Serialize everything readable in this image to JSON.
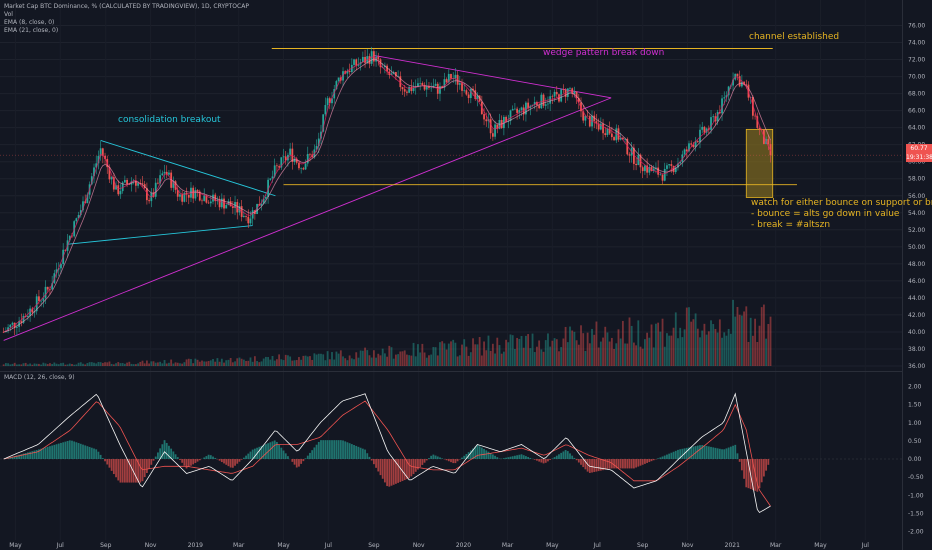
{
  "header": {
    "title": "Market Cap BTC Dominance, % (CALCULATED BY TRADINGVIEW), 1D, CRYPTOCAP",
    "indicators": [
      "Vol",
      "EMA (8, close, 0)",
      "EMA (21, close, 0)"
    ],
    "macd_label": "MACD (12, 26, close, 9)"
  },
  "price_badges": {
    "last": "60.77",
    "time": "19:31:38"
  },
  "annotations": {
    "consolidation": "consolidation breakout",
    "wedge": "wedge pattern break down",
    "channel": "channel established",
    "watch_1": "watch for either bounce on support or break",
    "watch_2": "- bounce = alts go down in value",
    "watch_3": "- break = #altszn"
  },
  "colors": {
    "background": "#131722",
    "up": "#26a69a",
    "down": "#ef5350",
    "triangle": "#26c6da",
    "wedge": "#d02fd0",
    "channel": "#e6b422",
    "text": "#b2b5be",
    "zone_fill": "#7a6520"
  },
  "chart_data": [
    {
      "type": "candlestick",
      "title": "Market Cap BTC Dominance, % (CALCULATED BY TRADINGVIEW), 1D, CRYPTOCAP",
      "x_ticks": [
        "May",
        "Jul",
        "Sep",
        "Nov",
        "2019",
        "Mar",
        "May",
        "Jul",
        "Sep",
        "Nov",
        "2020",
        "Mar",
        "May",
        "Jul",
        "Sep",
        "Nov",
        "2021",
        "Mar",
        "May",
        "Jul"
      ],
      "y_ticks": [
        36.0,
        38.0,
        40.0,
        42.0,
        44.0,
        46.0,
        48.0,
        50.0,
        52.0,
        54.0,
        56.0,
        58.0,
        60.0,
        62.0,
        64.0,
        66.0,
        68.0,
        70.0,
        72.0,
        74.0,
        76.0
      ],
      "ylim": [
        36,
        77.5
      ],
      "series": [
        {
          "name": "BTC Dominance",
          "dates": [
            "2018-04-15",
            "2018-05-15",
            "2018-06-15",
            "2018-07-10",
            "2018-08-01",
            "2018-08-25",
            "2018-09-15",
            "2018-10-10",
            "2018-11-01",
            "2018-11-20",
            "2018-12-10",
            "2018-12-31",
            "2019-01-25",
            "2019-02-15",
            "2019-03-15",
            "2019-04-01",
            "2019-04-20",
            "2019-05-10",
            "2019-05-25",
            "2019-06-15",
            "2019-06-30",
            "2019-07-20",
            "2019-08-10",
            "2019-08-31",
            "2019-09-10",
            "2019-09-25",
            "2019-10-15",
            "2019-11-05",
            "2019-11-30",
            "2019-12-15",
            "2020-01-01",
            "2020-01-20",
            "2020-02-10",
            "2020-02-28",
            "2020-03-20",
            "2020-04-10",
            "2020-05-05",
            "2020-05-25",
            "2020-06-15",
            "2020-07-10",
            "2020-07-30",
            "2020-08-20",
            "2020-09-10",
            "2020-09-30",
            "2020-10-20",
            "2020-11-10",
            "2020-11-30",
            "2020-12-20",
            "2021-01-03",
            "2021-01-20",
            "2021-02-05",
            "2021-02-22"
          ],
          "values": [
            40.0,
            42.0,
            45.0,
            50.5,
            55.0,
            61.5,
            56.5,
            58.0,
            55.5,
            59.0,
            56.0,
            56.5,
            55.5,
            55.0,
            53.5,
            55.5,
            59.0,
            61.0,
            59.5,
            61.5,
            67.0,
            70.5,
            71.5,
            72.5,
            71.0,
            70.0,
            68.5,
            69.0,
            68.5,
            70.0,
            69.0,
            67.0,
            63.5,
            65.0,
            66.0,
            67.0,
            67.5,
            68.5,
            65.0,
            64.0,
            63.0,
            60.5,
            59.0,
            58.5,
            60.0,
            62.5,
            64.0,
            67.0,
            70.5,
            68.5,
            64.0,
            60.77
          ]
        }
      ],
      "volume_ylim": [
        36,
        46
      ],
      "trendlines": [
        {
          "name": "triangle-upper",
          "points": [
            [
              "2018-08-25",
              62.5
            ],
            [
              "2019-04-20",
              56.0
            ]
          ]
        },
        {
          "name": "triangle-lower",
          "points": [
            [
              "2018-07-10",
              50.3
            ],
            [
              "2019-03-20",
              52.5
            ]
          ]
        },
        {
          "name": "wedge-upper",
          "points": [
            [
              "2019-08-31",
              72.5
            ],
            [
              "2020-07-20",
              67.5
            ]
          ]
        },
        {
          "name": "long-support",
          "points": [
            [
              "2018-04-15",
              39.0
            ],
            [
              "2020-07-20",
              67.5
            ]
          ]
        },
        {
          "name": "channel-top",
          "points": [
            [
              "2019-04-15",
              73.3
            ],
            [
              "2021-02-25",
              73.3
            ]
          ]
        },
        {
          "name": "channel-bottom",
          "points": [
            [
              "2019-05-01",
              57.3
            ],
            [
              "2021-03-30",
              57.3
            ]
          ]
        }
      ],
      "support_zone": {
        "from": "2021-01-20",
        "to": "2021-02-25",
        "ylim": [
          55.8,
          63.8
        ]
      }
    },
    {
      "type": "line",
      "title": "MACD (12, 26, close, 9)",
      "y_ticks": [
        2.0,
        1.5,
        1.0,
        0.5,
        0.0,
        -0.5,
        -1.0,
        -1.5,
        -2.0
      ],
      "ylim": [
        -2.1,
        2.3
      ],
      "dates": [
        "2018-04-15",
        "2018-06-01",
        "2018-07-15",
        "2018-08-20",
        "2018-09-20",
        "2018-10-20",
        "2018-11-20",
        "2018-12-20",
        "2019-01-20",
        "2019-02-20",
        "2019-03-20",
        "2019-04-20",
        "2019-05-20",
        "2019-06-20",
        "2019-07-20",
        "2019-08-20",
        "2019-09-20",
        "2019-10-20",
        "2019-11-20",
        "2019-12-20",
        "2020-01-20",
        "2020-02-20",
        "2020-03-20",
        "2020-04-20",
        "2020-05-20",
        "2020-06-20",
        "2020-07-20",
        "2020-08-20",
        "2020-09-20",
        "2020-10-20",
        "2020-11-20",
        "2020-12-20",
        "2021-01-05",
        "2021-01-20",
        "2021-02-05",
        "2021-02-22"
      ],
      "series": [
        {
          "name": "MACD",
          "values": [
            0.0,
            0.4,
            1.2,
            1.8,
            0.4,
            -0.8,
            0.2,
            -0.4,
            -0.2,
            -0.6,
            0.0,
            0.8,
            0.2,
            1.0,
            1.6,
            1.8,
            0.2,
            -0.6,
            -0.2,
            -0.4,
            0.4,
            0.2,
            0.4,
            0.0,
            0.6,
            -0.2,
            -0.3,
            -0.8,
            -0.6,
            0.0,
            0.6,
            1.0,
            1.8,
            0.2,
            -1.5,
            -1.3
          ]
        },
        {
          "name": "Signal",
          "values": [
            0.0,
            0.2,
            0.8,
            1.6,
            0.9,
            -0.3,
            -0.2,
            -0.2,
            -0.3,
            -0.4,
            -0.2,
            0.4,
            0.4,
            0.6,
            1.2,
            1.6,
            0.8,
            -0.2,
            -0.3,
            -0.3,
            0.1,
            0.2,
            0.3,
            0.1,
            0.4,
            0.1,
            -0.1,
            -0.6,
            -0.6,
            -0.2,
            0.3,
            0.8,
            1.5,
            0.8,
            -0.8,
            -1.3
          ]
        }
      ]
    }
  ]
}
